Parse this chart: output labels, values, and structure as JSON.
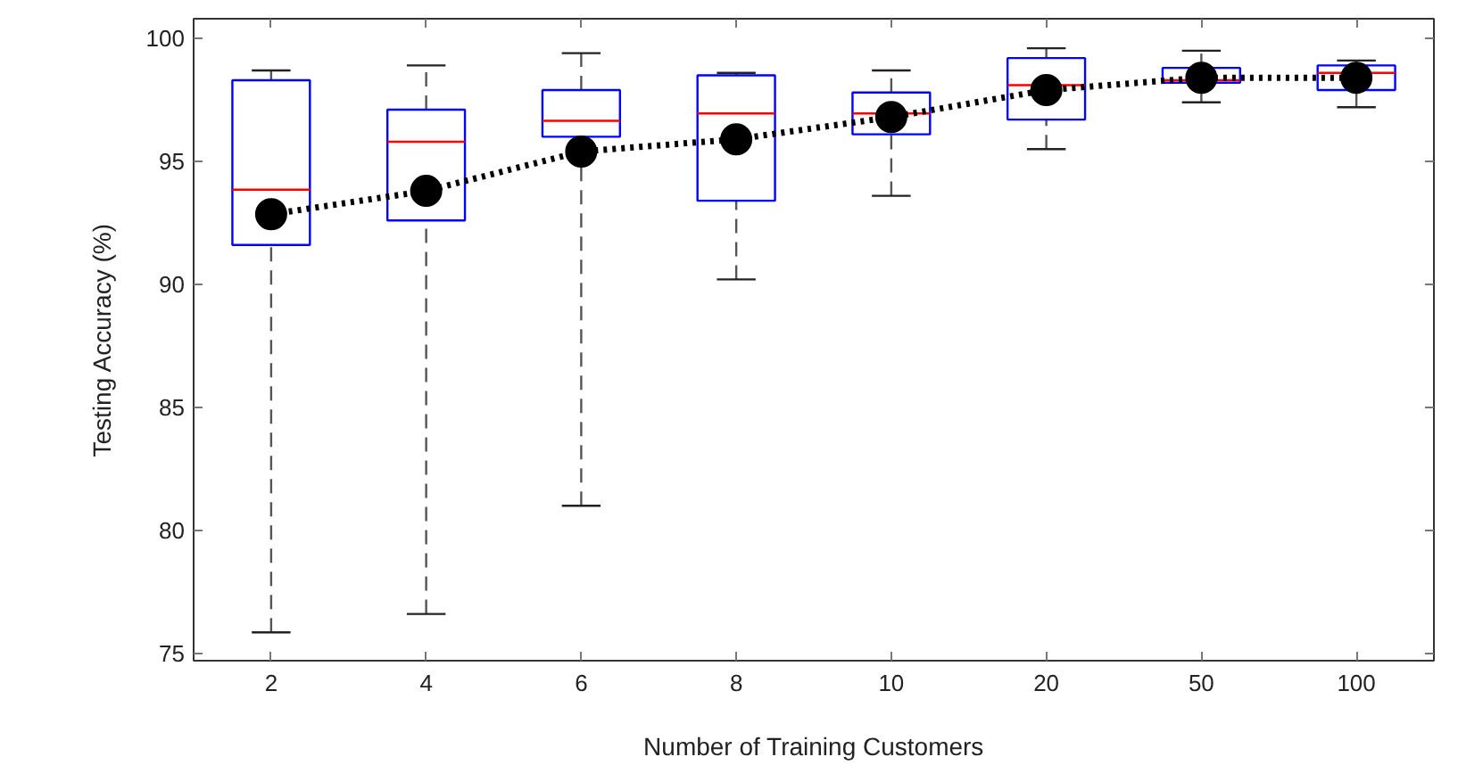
{
  "chart_data": {
    "type": "box",
    "xlabel": "Number of Training Customers",
    "ylabel": "Testing Accuracy (%)",
    "categories": [
      "2",
      "4",
      "6",
      "8",
      "10",
      "20",
      "50",
      "100"
    ],
    "series": [
      {
        "color": "#0000ff",
        "boxes": [
          {
            "low": 75.85,
            "q1": 91.6,
            "median": 93.85,
            "q3": 98.3,
            "high": 98.7
          },
          {
            "low": 76.6,
            "q1": 92.6,
            "median": 95.8,
            "q3": 97.1,
            "high": 98.9
          },
          {
            "low": 81.0,
            "q1": 96.0,
            "median": 96.65,
            "q3": 97.9,
            "high": 99.4
          },
          {
            "low": 90.2,
            "q1": 93.4,
            "median": 96.95,
            "q3": 98.5,
            "high": 98.6
          },
          {
            "low": 93.6,
            "q1": 96.1,
            "median": 96.95,
            "q3": 97.8,
            "high": 98.7
          },
          {
            "low": 95.5,
            "q1": 96.7,
            "median": 98.1,
            "q3": 99.2,
            "high": 99.6
          },
          {
            "low": 97.4,
            "q1": 98.2,
            "median": 98.3,
            "q3": 98.8,
            "high": 99.5
          },
          {
            "low": 97.2,
            "q1": 97.9,
            "median": 98.6,
            "q3": 98.9,
            "high": 99.1
          }
        ]
      },
      {
        "type": "line",
        "color": "#000000",
        "x": [
          "2",
          "4",
          "6",
          "8",
          "10",
          "20",
          "50",
          "100"
        ],
        "values": [
          92.85,
          93.8,
          95.4,
          95.9,
          96.8,
          97.9,
          98.4,
          98.4
        ]
      }
    ],
    "marker": "circle",
    "line_style": "dotted",
    "ylim": [
      74.7,
      100.8
    ],
    "yticks": [
      75,
      80,
      85,
      90,
      95,
      100
    ],
    "grid": false
  }
}
